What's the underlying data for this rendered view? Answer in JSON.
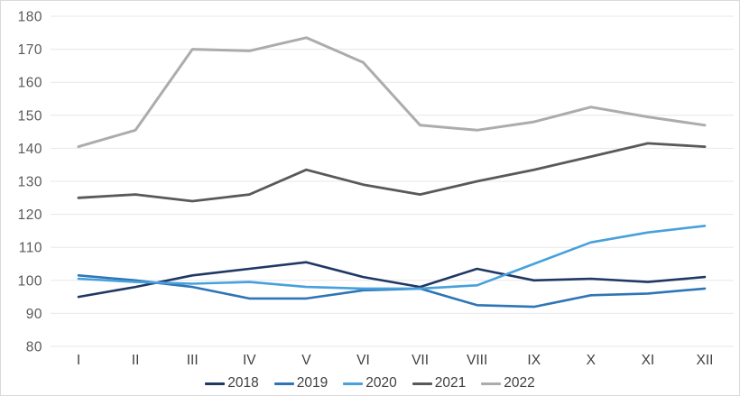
{
  "chart_data": {
    "type": "line",
    "title": "",
    "xlabel": "",
    "ylabel": "",
    "x": [
      "I",
      "II",
      "III",
      "IV",
      "V",
      "VI",
      "VII",
      "VIII",
      "IX",
      "X",
      "XI",
      "XII"
    ],
    "series": [
      {
        "name": "2018",
        "color": "#1f3864",
        "width": 2.6,
        "values": [
          95,
          98,
          101.5,
          103.5,
          105.5,
          101,
          98,
          103.5,
          100,
          100.5,
          99.5,
          101
        ]
      },
      {
        "name": "2019",
        "color": "#2e75b6",
        "width": 2.6,
        "values": [
          101.5,
          100,
          98,
          94.5,
          94.5,
          97,
          97.5,
          92.5,
          92,
          95.5,
          96,
          97.5
        ]
      },
      {
        "name": "2020",
        "color": "#47a1dc",
        "width": 2.6,
        "values": [
          100.5,
          99.5,
          99,
          99.5,
          98,
          97.5,
          97.5,
          98.5,
          105,
          111.5,
          114.5,
          116.5
        ]
      },
      {
        "name": "2021",
        "color": "#595959",
        "width": 2.8,
        "values": [
          125,
          126,
          124,
          126,
          133.5,
          129,
          126,
          130,
          133.5,
          137.5,
          141.5,
          140.5
        ]
      },
      {
        "name": "2022",
        "color": "#acacac",
        "width": 3,
        "values": [
          140.5,
          145.5,
          170,
          169.5,
          173.5,
          166,
          147,
          145.5,
          148,
          152.5,
          149.5,
          147
        ]
      }
    ],
    "ylim": [
      80,
      180
    ],
    "ytick_step": 10,
    "yticks": [
      "80",
      "90",
      "100",
      "110",
      "120",
      "130",
      "140",
      "150",
      "160",
      "170",
      "180"
    ],
    "grid": "horizontal-only",
    "legend_position": "bottom-center"
  },
  "colors": {
    "background": "#ffffff",
    "frame_border": "#d9d9d9",
    "gridline": "#e7e7e7",
    "axis_text": "#595959",
    "legend_text": "#404040"
  }
}
